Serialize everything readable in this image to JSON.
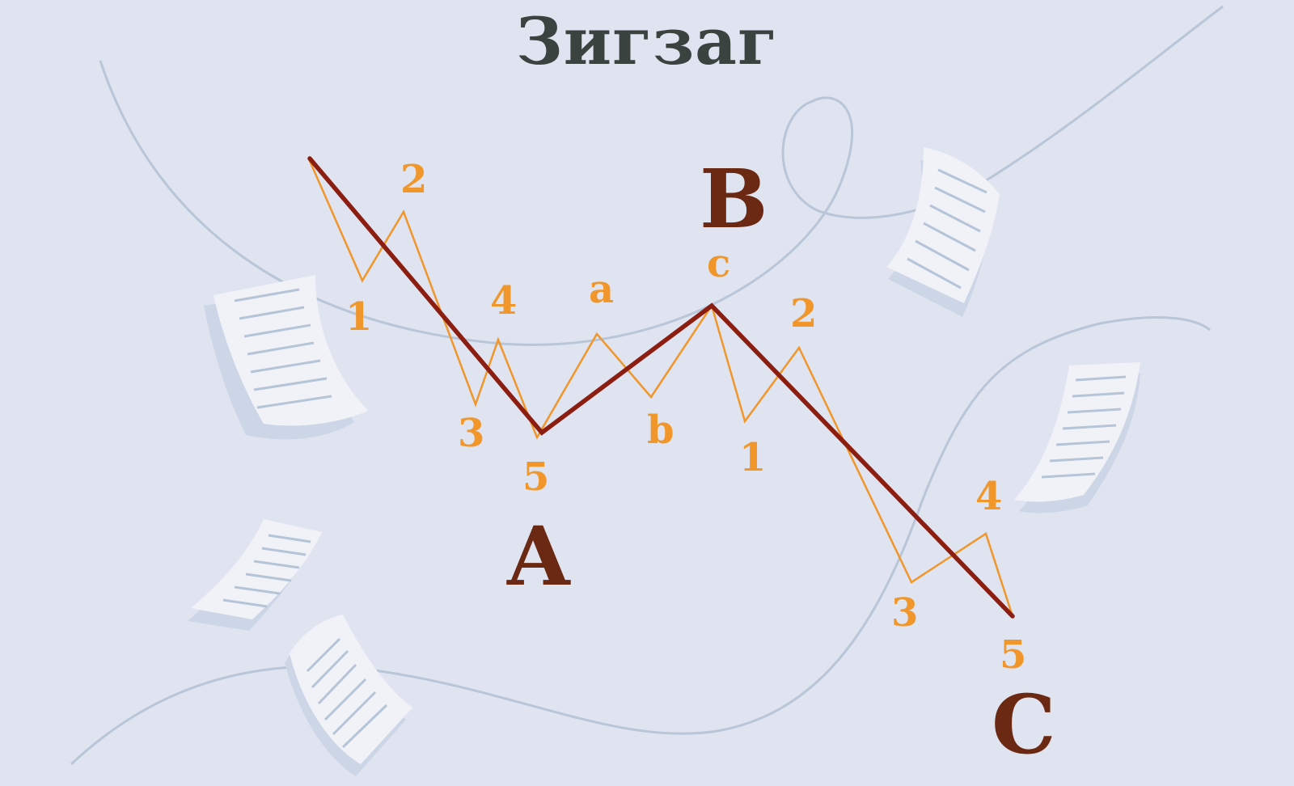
{
  "title": "Зигзаг",
  "colors": {
    "background": "#dfe4f0",
    "main_line": "#8b1e10",
    "sub_line": "#f0962a",
    "main_label": "#6b2812",
    "sub_label": "#f0962a",
    "decor_curve": "#b8c6d8",
    "paper": "#f0f2f8"
  },
  "main_labels": {
    "a": "A",
    "b": "B",
    "c": "C"
  },
  "wave_a_labels": [
    "1",
    "2",
    "3",
    "4",
    "5"
  ],
  "wave_b_labels": [
    "a",
    "b",
    "c"
  ],
  "wave_c_labels": [
    "1",
    "2",
    "3",
    "4",
    "5"
  ],
  "decor_icons": [
    "paper-sheet-icon",
    "paper-sheet-icon",
    "paper-sheet-icon",
    "paper-sheet-icon",
    "paper-sheet-icon",
    "paper-sheet-icon"
  ]
}
